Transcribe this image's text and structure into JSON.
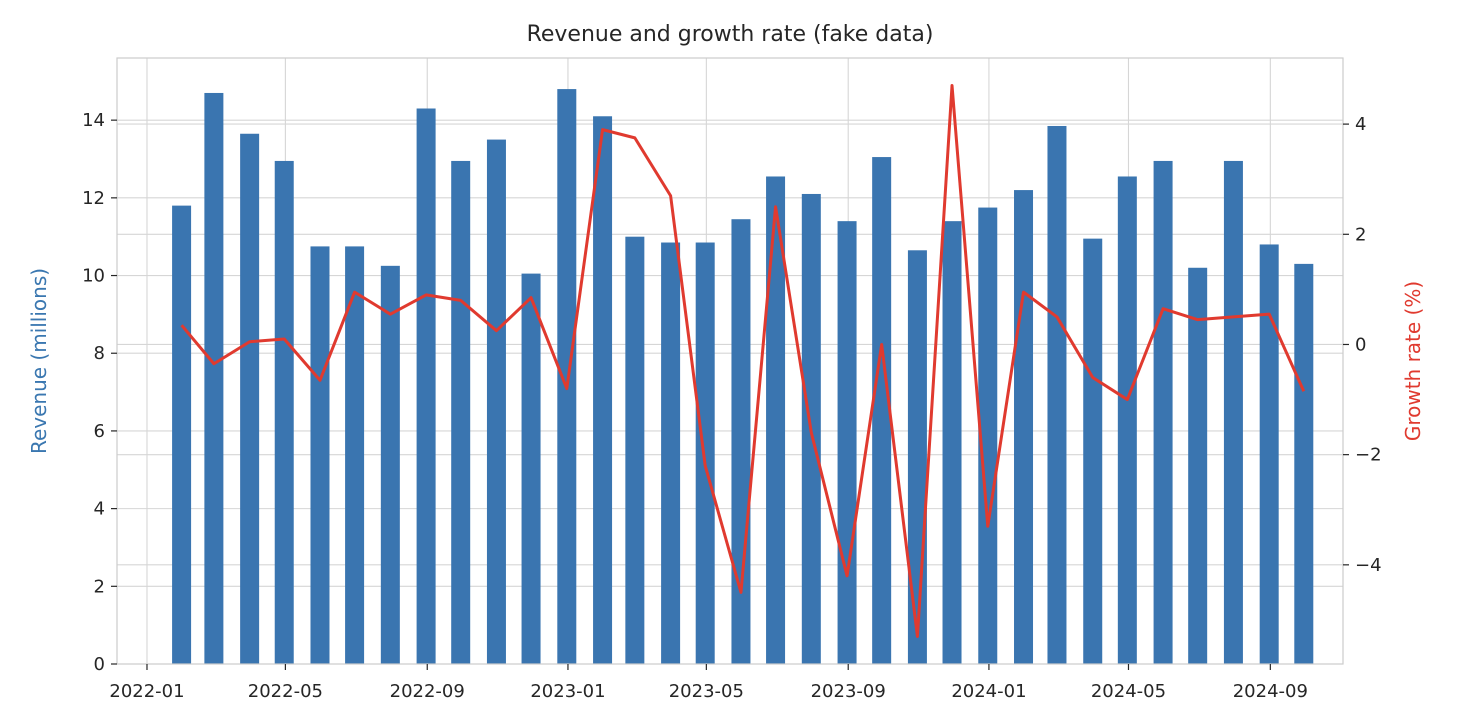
{
  "chart_data": {
    "type": "bar+line",
    "title": "Revenue and growth rate (fake data)",
    "xlabel": "",
    "x_tick_labels": [
      "2022-01",
      "2022-05",
      "2022-09",
      "2023-01",
      "2023-05",
      "2023-09",
      "2024-01",
      "2024-05",
      "2024-09"
    ],
    "x": [
      "2022-01-31",
      "2022-02-28",
      "2022-03-31",
      "2022-04-30",
      "2022-05-31",
      "2022-06-30",
      "2022-07-31",
      "2022-08-31",
      "2022-09-30",
      "2022-10-31",
      "2022-11-30",
      "2022-12-31",
      "2023-01-31",
      "2023-02-28",
      "2023-03-31",
      "2023-04-30",
      "2023-05-31",
      "2023-06-30",
      "2023-07-31",
      "2023-08-31",
      "2023-09-30",
      "2023-10-31",
      "2023-11-30",
      "2023-12-31",
      "2024-01-31",
      "2024-02-29",
      "2024-03-31",
      "2024-04-30",
      "2024-05-31",
      "2024-06-30",
      "2024-07-31",
      "2024-08-31",
      "2024-09-30"
    ],
    "left_axis": {
      "label": "Revenue (millions)",
      "color": "#3a77b0",
      "ylim": [
        0,
        15.6
      ],
      "ticks": [
        0,
        2,
        4,
        6,
        8,
        10,
        12,
        14
      ]
    },
    "right_axis": {
      "label": "Growth rate (%)",
      "color": "#e03a2f",
      "ylim": [
        -5.8,
        5.2
      ],
      "ticks": [
        4,
        2,
        0,
        -2,
        -4
      ],
      "tick_labels": [
        "4",
        "2",
        "0",
        "−2",
        "−4"
      ]
    },
    "series": [
      {
        "type": "bar",
        "axis": "left",
        "color": "#3a75b0",
        "values": [
          11.8,
          14.7,
          13.65,
          12.95,
          10.75,
          10.75,
          10.25,
          14.3,
          12.95,
          13.5,
          10.05,
          14.8,
          14.1,
          11.0,
          10.85,
          10.85,
          11.45,
          12.55,
          12.1,
          11.4,
          13.05,
          10.65,
          11.4,
          11.75,
          12.2,
          13.85,
          10.95,
          12.55,
          12.95,
          10.2,
          12.95,
          10.8,
          10.3
        ]
      },
      {
        "type": "line",
        "axis": "right",
        "color": "#e03a2f",
        "values": [
          0.35,
          -0.35,
          0.05,
          0.1,
          -0.65,
          0.95,
          0.55,
          0.9,
          0.8,
          0.25,
          0.85,
          -0.8,
          3.9,
          3.75,
          2.7,
          -2.2,
          -4.5,
          2.5,
          -1.6,
          -4.2,
          0.0,
          -5.3,
          4.7,
          -3.3,
          0.95,
          0.5,
          -0.6,
          -1.0,
          0.65,
          0.45,
          0.5,
          0.55,
          -0.85
        ]
      }
    ],
    "grid": true,
    "legend": "none"
  }
}
